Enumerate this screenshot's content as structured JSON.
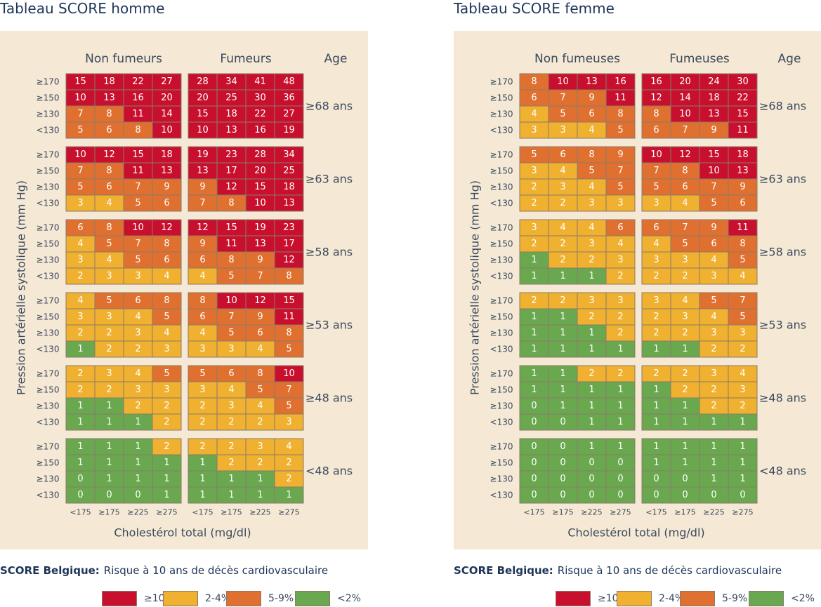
{
  "colors": {
    "high": "#c8102e",
    "mid2": "#e07030",
    "mid1": "#f0b030",
    "low": "#6aa84f",
    "grid": "#8a7a6a",
    "background": "#f5e8d5"
  },
  "panels": [
    {
      "title": "Tableau SCORE homme",
      "groups": [
        "Non fumeurs",
        "Fumeurs"
      ],
      "age_header": "Age",
      "ylabel": "Pression artérielle systolique (mm Hg)",
      "xlabel": "Cholestérol total (mg/dl)",
      "legend_title_bold": "SCORE Belgique:",
      "legend_title_rest": "Risque à 10 ans de décès cardiovasculaire"
    },
    {
      "title": "Tableau SCORE femme",
      "groups": [
        "Non fumeuses",
        "Fumeuses"
      ],
      "age_header": "Age",
      "ylabel": "Pression artérielle systolique (mm Hg)",
      "xlabel": "Cholestérol total (mg/dl)",
      "legend_title_bold": "SCORE Belgique:",
      "legend_title_rest": "Risque à 10 ans de décès cardiovasculaire"
    }
  ],
  "legend": [
    {
      "label": "≥10%",
      "color": "#c8102e"
    },
    {
      "label": "2-4%",
      "color": "#f0b030"
    },
    {
      "label": "5-9%",
      "color": "#e07030"
    },
    {
      "label": "<2%",
      "color": "#6aa84f"
    }
  ],
  "chart_data": {
    "type": "heatmap",
    "age_bands": [
      "≥68 ans",
      "≥63 ans",
      "≥58 ans",
      "≥53 ans",
      "≥48 ans",
      "<48 ans"
    ],
    "bp_bands": [
      "≥170",
      "≥150",
      "≥130",
      "<130"
    ],
    "cholesterol_bands": [
      "<175",
      "≥175",
      "≥225",
      "≥275"
    ],
    "homme": {
      "Non fumeurs": [
        [
          [
            15,
            18,
            22,
            27
          ],
          [
            10,
            13,
            16,
            20
          ],
          [
            7,
            8,
            11,
            14
          ],
          [
            5,
            6,
            8,
            10
          ]
        ],
        [
          [
            10,
            12,
            15,
            18
          ],
          [
            7,
            8,
            11,
            13
          ],
          [
            5,
            6,
            7,
            9
          ],
          [
            3,
            4,
            5,
            6
          ]
        ],
        [
          [
            6,
            8,
            10,
            12
          ],
          [
            4,
            5,
            7,
            8
          ],
          [
            3,
            4,
            5,
            6
          ],
          [
            2,
            3,
            3,
            4
          ]
        ],
        [
          [
            4,
            5,
            6,
            8
          ],
          [
            3,
            3,
            4,
            5
          ],
          [
            2,
            2,
            3,
            4
          ],
          [
            1,
            2,
            2,
            3
          ]
        ],
        [
          [
            2,
            3,
            4,
            5
          ],
          [
            2,
            2,
            3,
            3
          ],
          [
            1,
            1,
            2,
            2
          ],
          [
            1,
            1,
            1,
            2
          ]
        ],
        [
          [
            1,
            1,
            1,
            2
          ],
          [
            1,
            1,
            1,
            1
          ],
          [
            0,
            1,
            1,
            1
          ],
          [
            0,
            0,
            0,
            1
          ]
        ]
      ],
      "Fumeurs": [
        [
          [
            28,
            34,
            41,
            48
          ],
          [
            20,
            25,
            30,
            36
          ],
          [
            15,
            18,
            22,
            27
          ],
          [
            10,
            13,
            16,
            19
          ]
        ],
        [
          [
            19,
            23,
            28,
            34
          ],
          [
            13,
            17,
            20,
            25
          ],
          [
            9,
            12,
            15,
            18
          ],
          [
            7,
            8,
            10,
            13
          ]
        ],
        [
          [
            12,
            15,
            19,
            23
          ],
          [
            9,
            11,
            13,
            17
          ],
          [
            6,
            8,
            9,
            12
          ],
          [
            4,
            5,
            7,
            8
          ]
        ],
        [
          [
            8,
            10,
            12,
            15
          ],
          [
            6,
            7,
            9,
            11
          ],
          [
            4,
            5,
            6,
            8
          ],
          [
            3,
            3,
            4,
            5
          ]
        ],
        [
          [
            5,
            6,
            8,
            10
          ],
          [
            3,
            4,
            5,
            7
          ],
          [
            2,
            3,
            4,
            5
          ],
          [
            2,
            2,
            2,
            3
          ]
        ],
        [
          [
            2,
            2,
            3,
            4
          ],
          [
            1,
            2,
            2,
            2
          ],
          [
            1,
            1,
            1,
            2
          ],
          [
            1,
            1,
            1,
            1
          ]
        ]
      ]
    },
    "femme": {
      "Non fumeuses": [
        [
          [
            8,
            10,
            13,
            16
          ],
          [
            6,
            7,
            9,
            11
          ],
          [
            4,
            5,
            6,
            8
          ],
          [
            3,
            3,
            4,
            5
          ]
        ],
        [
          [
            5,
            6,
            8,
            9
          ],
          [
            3,
            4,
            5,
            7
          ],
          [
            2,
            3,
            4,
            5
          ],
          [
            2,
            2,
            3,
            3
          ]
        ],
        [
          [
            3,
            4,
            4,
            6
          ],
          [
            2,
            2,
            3,
            4
          ],
          [
            1,
            2,
            2,
            3
          ],
          [
            1,
            1,
            1,
            2
          ]
        ],
        [
          [
            2,
            2,
            3,
            3
          ],
          [
            1,
            1,
            2,
            2
          ],
          [
            1,
            1,
            1,
            2
          ],
          [
            1,
            1,
            1,
            1
          ]
        ],
        [
          [
            1,
            1,
            2,
            2
          ],
          [
            1,
            1,
            1,
            1
          ],
          [
            0,
            1,
            1,
            1
          ],
          [
            0,
            0,
            1,
            1
          ]
        ],
        [
          [
            0,
            0,
            1,
            1
          ],
          [
            0,
            0,
            0,
            0
          ],
          [
            0,
            0,
            0,
            0
          ],
          [
            0,
            0,
            0,
            0
          ]
        ]
      ],
      "Fumeuses": [
        [
          [
            16,
            20,
            24,
            30
          ],
          [
            12,
            14,
            18,
            22
          ],
          [
            8,
            10,
            13,
            15
          ],
          [
            6,
            7,
            9,
            11
          ]
        ],
        [
          [
            10,
            12,
            15,
            18
          ],
          [
            7,
            8,
            10,
            13
          ],
          [
            5,
            6,
            7,
            9
          ],
          [
            3,
            4,
            5,
            6
          ]
        ],
        [
          [
            6,
            7,
            9,
            11
          ],
          [
            4,
            5,
            6,
            8
          ],
          [
            3,
            3,
            4,
            5
          ],
          [
            2,
            2,
            3,
            4
          ]
        ],
        [
          [
            3,
            4,
            5,
            7
          ],
          [
            2,
            3,
            4,
            5
          ],
          [
            2,
            2,
            3,
            3
          ],
          [
            1,
            1,
            2,
            2
          ]
        ],
        [
          [
            2,
            2,
            3,
            4
          ],
          [
            1,
            2,
            2,
            3
          ],
          [
            1,
            1,
            2,
            2
          ],
          [
            1,
            1,
            1,
            1
          ]
        ],
        [
          [
            1,
            1,
            1,
            1
          ],
          [
            1,
            1,
            1,
            1
          ],
          [
            0,
            0,
            1,
            1
          ],
          [
            0,
            0,
            0,
            0
          ]
        ]
      ]
    }
  }
}
